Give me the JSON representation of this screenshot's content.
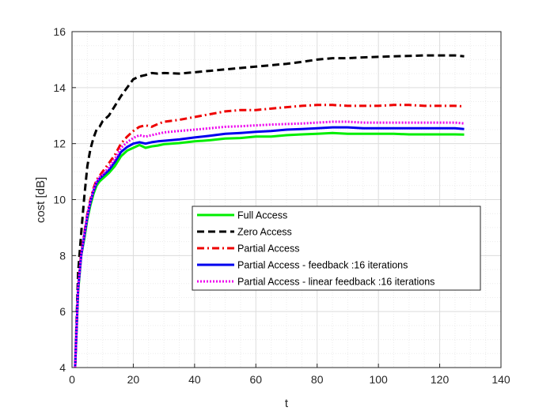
{
  "chart_data": {
    "type": "line",
    "title": "",
    "xlabel": "t",
    "ylabel": "cost [dB]",
    "xlim": [
      0,
      140
    ],
    "ylim": [
      4,
      16
    ],
    "xticks": [
      0,
      20,
      40,
      60,
      80,
      100,
      120,
      140
    ],
    "yticks": [
      4,
      6,
      8,
      10,
      12,
      14,
      16
    ],
    "grid": true,
    "minor_grid": true,
    "legend_position": "center-right",
    "series": [
      {
        "name": "Full Access",
        "color": "#00ee00",
        "dash": "solid",
        "x": [
          1,
          2,
          3,
          4,
          5,
          6,
          7,
          8,
          9,
          10,
          12,
          14,
          16,
          18,
          20,
          22,
          24,
          26,
          28,
          30,
          35,
          40,
          45,
          50,
          55,
          60,
          65,
          70,
          75,
          80,
          85,
          90,
          95,
          100,
          105,
          110,
          115,
          120,
          125,
          128
        ],
        "y": [
          4.0,
          6.7,
          8.0,
          8.6,
          9.3,
          9.8,
          10.2,
          10.5,
          10.65,
          10.75,
          10.95,
          11.2,
          11.55,
          11.75,
          11.85,
          11.95,
          11.85,
          11.9,
          11.93,
          11.98,
          12.02,
          12.08,
          12.12,
          12.18,
          12.2,
          12.25,
          12.25,
          12.3,
          12.33,
          12.35,
          12.38,
          12.35,
          12.35,
          12.35,
          12.35,
          12.33,
          12.33,
          12.33,
          12.33,
          12.32
        ]
      },
      {
        "name": "Zero Access",
        "color": "#000000",
        "dash": "dashed",
        "x": [
          1,
          2,
          3,
          4,
          5,
          6,
          7,
          8,
          9,
          10,
          12,
          14,
          16,
          18,
          20,
          22,
          24,
          26,
          28,
          30,
          35,
          40,
          45,
          50,
          55,
          60,
          65,
          70,
          75,
          80,
          85,
          90,
          95,
          100,
          105,
          110,
          115,
          120,
          125,
          128
        ],
        "y": [
          4.0,
          7.4,
          8.8,
          10.1,
          11.2,
          11.8,
          12.2,
          12.5,
          12.6,
          12.8,
          13.0,
          13.35,
          13.7,
          14.0,
          14.3,
          14.4,
          14.45,
          14.52,
          14.5,
          14.52,
          14.5,
          14.55,
          14.6,
          14.65,
          14.7,
          14.75,
          14.8,
          14.85,
          14.92,
          15.0,
          15.05,
          15.05,
          15.08,
          15.1,
          15.12,
          15.13,
          15.15,
          15.15,
          15.15,
          15.12
        ]
      },
      {
        "name": "Partial Access",
        "color": "#ee0000",
        "dash": "dashdot",
        "x": [
          1,
          2,
          3,
          4,
          5,
          6,
          7,
          8,
          9,
          10,
          12,
          14,
          16,
          18,
          20,
          22,
          24,
          26,
          28,
          30,
          35,
          40,
          45,
          50,
          55,
          60,
          65,
          70,
          75,
          80,
          85,
          90,
          95,
          100,
          105,
          110,
          115,
          120,
          125,
          128
        ],
        "y": [
          4.0,
          6.9,
          8.1,
          8.8,
          9.5,
          10.0,
          10.4,
          10.7,
          10.85,
          11.0,
          11.3,
          11.6,
          12.0,
          12.25,
          12.45,
          12.6,
          12.65,
          12.6,
          12.7,
          12.78,
          12.85,
          12.95,
          13.05,
          13.15,
          13.2,
          13.2,
          13.25,
          13.3,
          13.35,
          13.38,
          13.38,
          13.35,
          13.35,
          13.35,
          13.38,
          13.38,
          13.35,
          13.35,
          13.35,
          13.33
        ]
      },
      {
        "name": "Partial Access - feedback :16 iterations",
        "color": "#0000ee",
        "dash": "solid",
        "x": [
          1,
          2,
          3,
          4,
          5,
          6,
          7,
          8,
          9,
          10,
          12,
          14,
          16,
          18,
          20,
          22,
          24,
          26,
          28,
          30,
          35,
          40,
          45,
          50,
          55,
          60,
          65,
          70,
          75,
          80,
          85,
          90,
          95,
          100,
          105,
          110,
          115,
          120,
          125,
          128
        ],
        "y": [
          4.0,
          6.8,
          8.0,
          8.7,
          9.4,
          9.9,
          10.3,
          10.6,
          10.75,
          10.85,
          11.05,
          11.35,
          11.7,
          11.88,
          12.0,
          12.05,
          12.0,
          12.05,
          12.08,
          12.1,
          12.15,
          12.22,
          12.28,
          12.35,
          12.38,
          12.42,
          12.45,
          12.5,
          12.52,
          12.55,
          12.58,
          12.58,
          12.55,
          12.55,
          12.55,
          12.55,
          12.55,
          12.55,
          12.55,
          12.52
        ]
      },
      {
        "name": "Partial Access - linear feedback :16 iterations",
        "color": "#ee00ee",
        "dash": "dotted",
        "x": [
          1,
          2,
          3,
          4,
          5,
          6,
          7,
          8,
          9,
          10,
          12,
          14,
          16,
          18,
          20,
          22,
          24,
          26,
          28,
          30,
          35,
          40,
          45,
          50,
          55,
          60,
          65,
          70,
          75,
          80,
          85,
          90,
          95,
          100,
          105,
          110,
          115,
          120,
          125,
          128
        ],
        "y": [
          4.0,
          6.85,
          8.05,
          8.75,
          9.45,
          9.95,
          10.35,
          10.65,
          10.8,
          10.9,
          11.15,
          11.45,
          11.85,
          12.05,
          12.2,
          12.3,
          12.25,
          12.3,
          12.35,
          12.4,
          12.45,
          12.5,
          12.55,
          12.6,
          12.62,
          12.65,
          12.68,
          12.7,
          12.72,
          12.75,
          12.78,
          12.78,
          12.75,
          12.75,
          12.75,
          12.75,
          12.75,
          12.75,
          12.75,
          12.72
        ]
      }
    ]
  }
}
